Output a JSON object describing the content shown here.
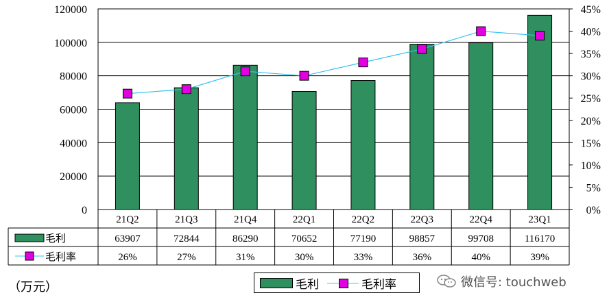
{
  "chart_data": {
    "type": "bar",
    "categories": [
      "21Q2",
      "21Q3",
      "21Q4",
      "22Q1",
      "22Q2",
      "22Q3",
      "22Q4",
      "23Q1"
    ],
    "series": [
      {
        "name": "毛利",
        "type": "bar",
        "axis": "left",
        "color": "#2f8f5f",
        "values": [
          63907,
          72844,
          86290,
          70652,
          77190,
          98857,
          99708,
          116170
        ]
      },
      {
        "name": "毛利率",
        "type": "line",
        "axis": "right",
        "color": "#e000e0",
        "line_color": "#33c3f0",
        "values": [
          0.26,
          0.27,
          0.31,
          0.3,
          0.33,
          0.36,
          0.4,
          0.39
        ]
      }
    ],
    "table_rows": [
      {
        "label": "毛利",
        "values": [
          "63907",
          "72844",
          "86290",
          "70652",
          "77190",
          "98857",
          "99708",
          "116170"
        ]
      },
      {
        "label": "毛利率",
        "values": [
          "26%",
          "27%",
          "31%",
          "30%",
          "33%",
          "36%",
          "40%",
          "39%"
        ]
      }
    ],
    "y_left": {
      "ticks": [
        "0",
        "20000",
        "40000",
        "60000",
        "80000",
        "100000",
        "120000"
      ],
      "ylim": [
        0,
        120000
      ]
    },
    "y_right": {
      "ticks": [
        "0%",
        "5%",
        "10%",
        "15%",
        "20%",
        "25%",
        "30%",
        "35%",
        "40%",
        "45%"
      ],
      "ylim": [
        0,
        0.45
      ]
    },
    "grid": true,
    "legend_position": "bottom",
    "unit_label": "（万元）",
    "legend": {
      "bar_label": "毛利",
      "line_label": "毛利率"
    }
  },
  "watermark": {
    "text": "微信号: touchweb",
    "icon": "wechat-icon"
  }
}
